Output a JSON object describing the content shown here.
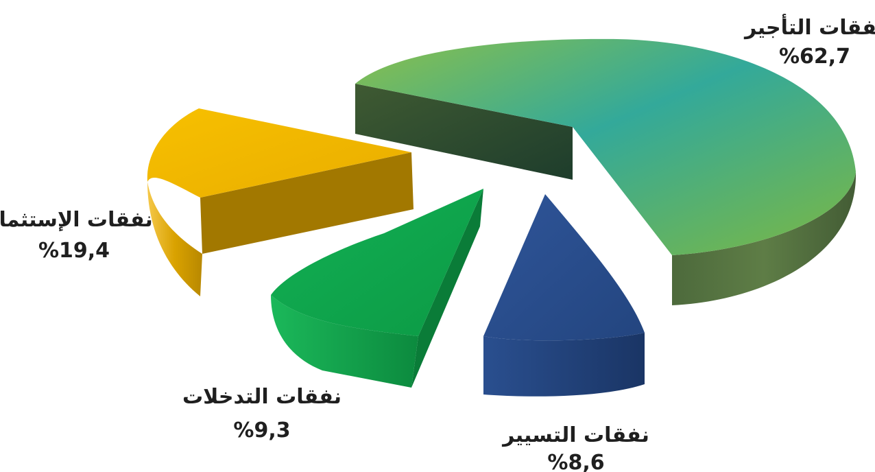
{
  "chart_data": {
    "type": "pie",
    "title": "",
    "slices": [
      {
        "label": "نفقات التأجير",
        "value": 62.7,
        "value_label": "%62,7",
        "color": "#3fae8e"
      },
      {
        "label": "نفقات التسيير",
        "value": 8.6,
        "value_label": "%8,6",
        "color": "#2b4f8e"
      },
      {
        "label": "نفقات التدخلات",
        "value": 9.3,
        "value_label": "%9,3",
        "color": "#11a84a"
      },
      {
        "label": "نفقات الإستثمار",
        "value": 19.4,
        "value_label": "%19,4",
        "color": "#f2b705"
      }
    ],
    "style": "3d-exploded",
    "legend": "none"
  }
}
